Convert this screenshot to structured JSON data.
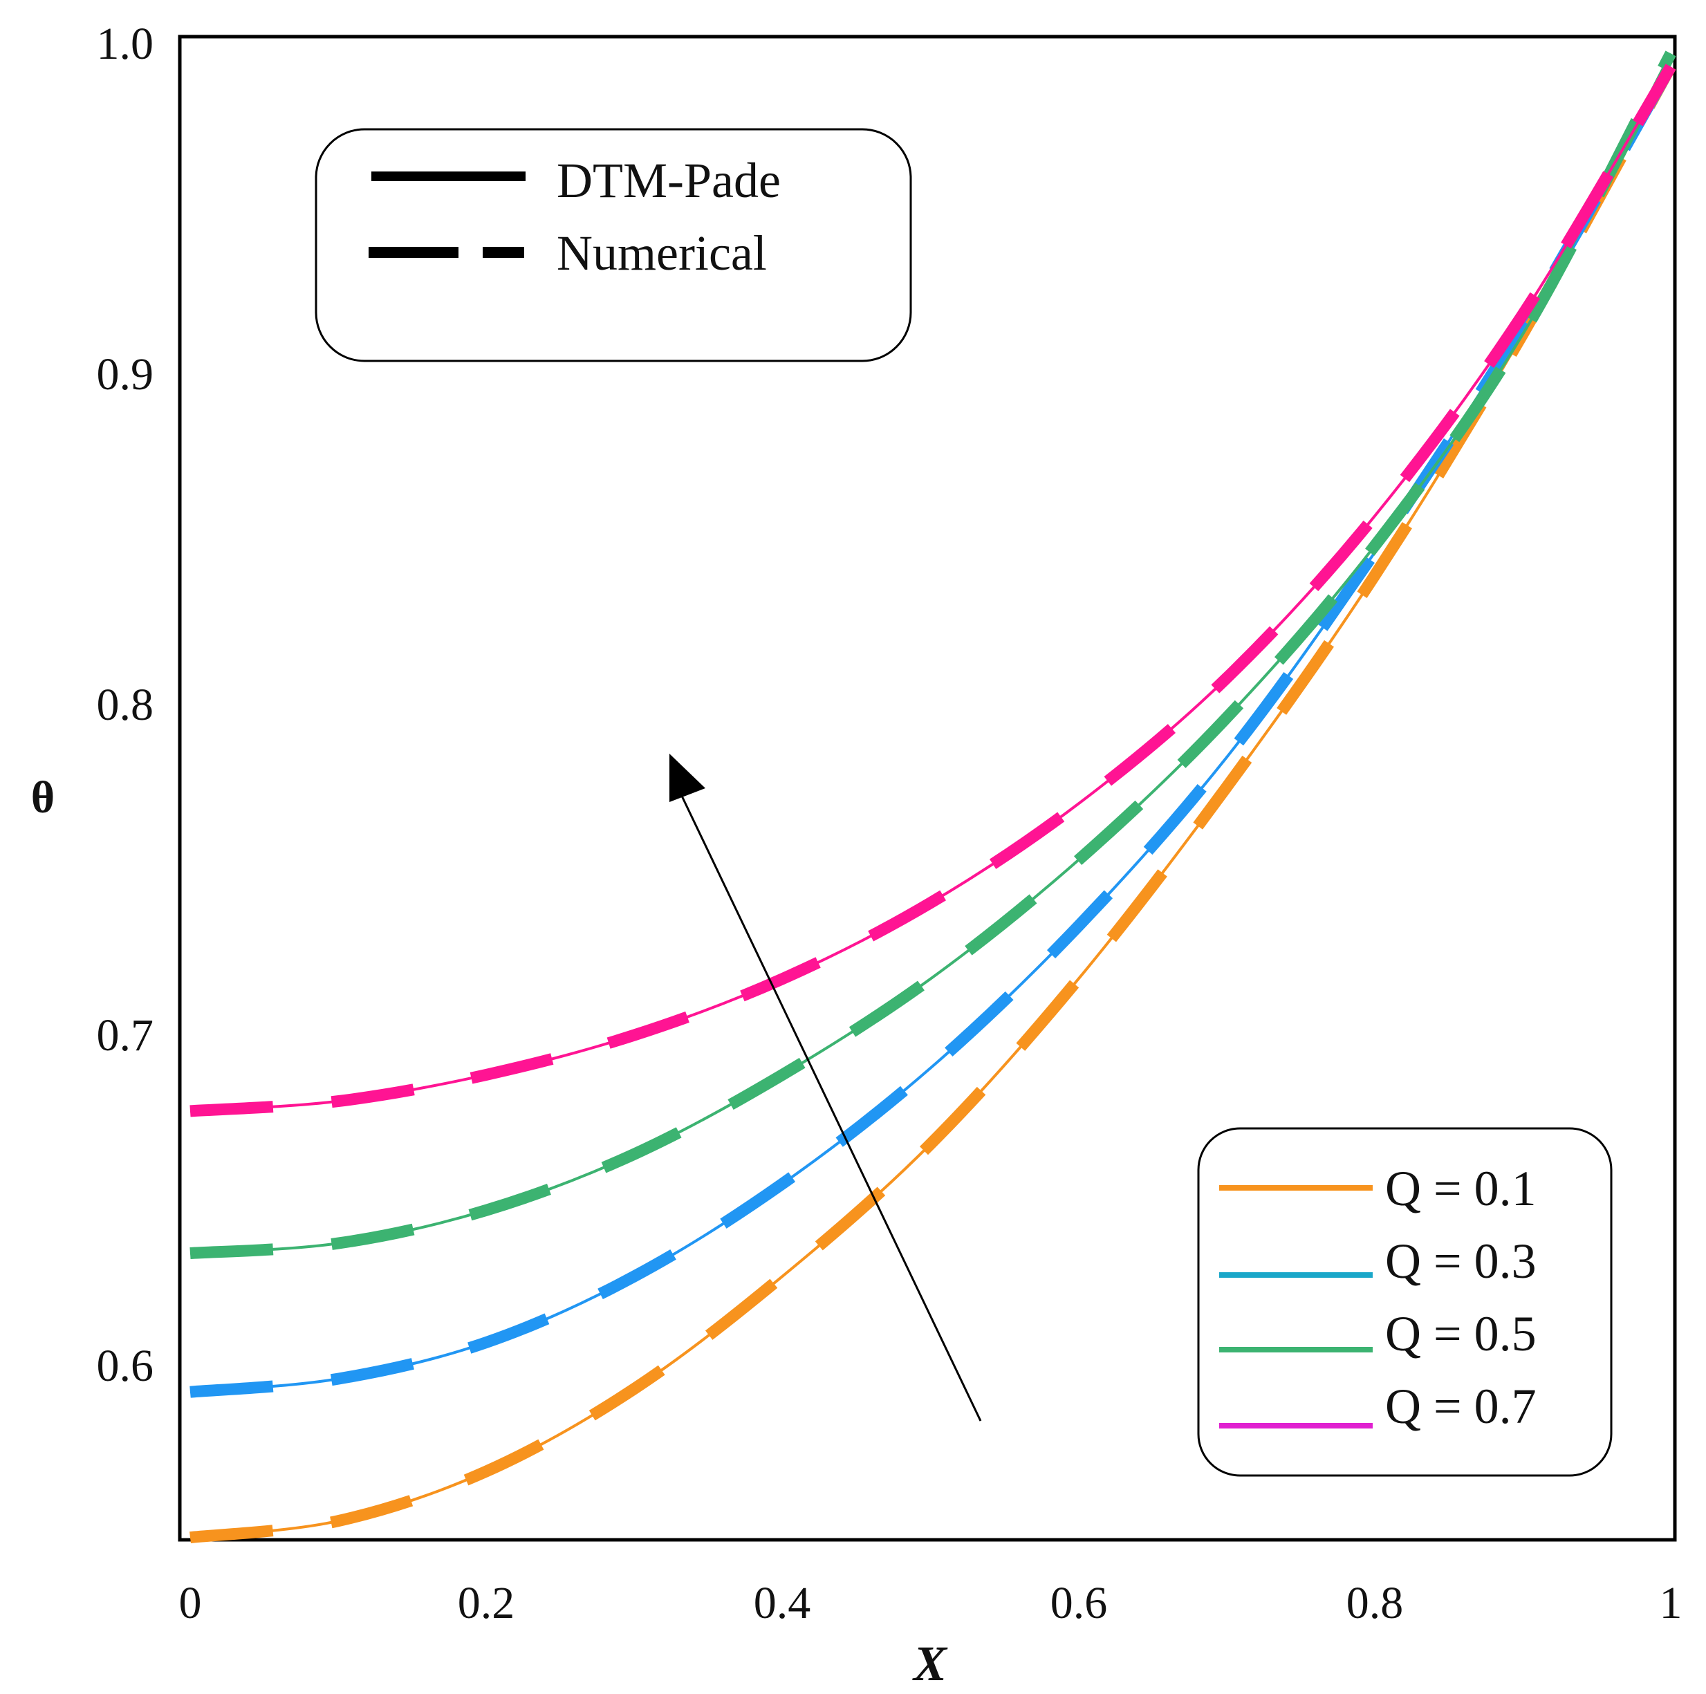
{
  "chart_data": {
    "type": "line",
    "title": "",
    "xlabel": "X",
    "ylabel": "θ",
    "xlim": [
      0,
      1
    ],
    "ylim": [
      0.545,
      1.0
    ],
    "x_ticks": [
      "0",
      "0.2",
      "0.4",
      "0.6",
      "0.8",
      "1"
    ],
    "y_ticks": [
      "0.6",
      "0.7",
      "0.8",
      "0.9",
      "1.0"
    ],
    "x": [
      0,
      0.1,
      0.2,
      0.3,
      0.4,
      0.5,
      0.6,
      0.7,
      0.8,
      0.9,
      1.0
    ],
    "series": [
      {
        "name": "Q = 0.1",
        "color": "#f7931e",
        "dash_color": "#f7931e",
        "values": [
          0.548,
          0.553,
          0.568,
          0.593,
          0.627,
          0.667,
          0.717,
          0.775,
          0.839,
          0.912,
          0.993
        ]
      },
      {
        "name": "Q = 0.3",
        "color": "#2196f3",
        "dash_color": "#2196f3",
        "values": [
          0.592,
          0.596,
          0.607,
          0.627,
          0.655,
          0.69,
          0.733,
          0.784,
          0.846,
          0.915,
          0.993
        ]
      },
      {
        "name": "Q = 0.5",
        "color": "#3cb371",
        "dash_color": "#3cb371",
        "values": [
          0.634,
          0.637,
          0.647,
          0.664,
          0.688,
          0.717,
          0.753,
          0.796,
          0.848,
          0.912,
          0.997
        ]
      },
      {
        "name": "Q = 0.7",
        "color": "#ff1493",
        "dash_color": "#ff1493",
        "values": [
          0.677,
          0.68,
          0.688,
          0.7,
          0.717,
          0.74,
          0.77,
          0.808,
          0.857,
          0.918,
          0.993
        ]
      }
    ],
    "legend_series_colors": [
      "#f7931e",
      "#1aa7c9",
      "#3cb371",
      "#e020d0"
    ],
    "legend_methods": [
      "DTM-Pade",
      "Numerical"
    ],
    "legend_methods_position": "top-left",
    "legend_series_position": "bottom-right",
    "arrow": {
      "from": [
        0.531,
        0.57
      ],
      "to": [
        0.325,
        0.78
      ],
      "meaning": "increasing Q"
    }
  }
}
